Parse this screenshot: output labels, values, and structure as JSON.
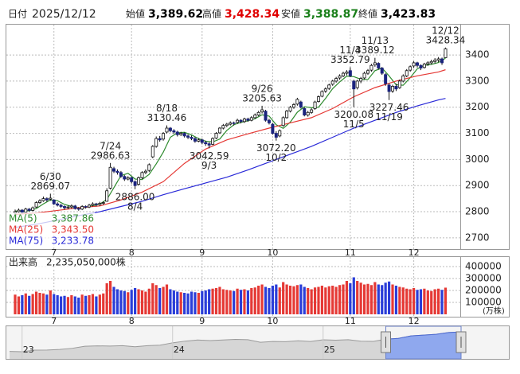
{
  "header": {
    "date_label": "日付",
    "date": "2025/12/12",
    "fields": [
      {
        "label": "始値",
        "value": 3389.62,
        "value_label": "3,389.62",
        "color": "#000000"
      },
      {
        "label": "高値",
        "value": 3428.34,
        "value_label": "3,428.34",
        "color": "#e00000"
      },
      {
        "label": "安値",
        "value": 3388.87,
        "value_label": "3,388.87",
        "color": "#1a7f1a"
      },
      {
        "label": "終値",
        "value": 3423.83,
        "value_label": "3,423.83",
        "color": "#000000"
      }
    ]
  },
  "chart_data": {
    "type": "candlestick",
    "ylim": [
      2657,
      3516
    ],
    "yticks": [
      2700,
      2800,
      2900,
      3000,
      3100,
      3200,
      3300,
      3400
    ],
    "grid": true,
    "xticks": [
      {
        "value": 11,
        "label": "7"
      },
      {
        "value": 33,
        "label": "8"
      },
      {
        "value": 53,
        "label": "9"
      },
      {
        "value": 73,
        "label": "10"
      },
      {
        "value": 95,
        "label": "11"
      },
      {
        "value": 113,
        "label": "12"
      }
    ],
    "up_color": "#ffffff",
    "down_color": "#1a237e",
    "candles": [
      [
        2795,
        2808,
        2790,
        2800
      ],
      [
        2800,
        2812,
        2796,
        2806
      ],
      [
        2806,
        2810,
        2792,
        2798
      ],
      [
        2798,
        2815,
        2795,
        2810
      ],
      [
        2810,
        2814,
        2800,
        2805
      ],
      [
        2805,
        2820,
        2802,
        2815
      ],
      [
        2818,
        2840,
        2815,
        2835
      ],
      [
        2835,
        2848,
        2830,
        2842
      ],
      [
        2842,
        2858,
        2838,
        2850
      ],
      [
        2850,
        2855,
        2838,
        2845
      ],
      [
        2848,
        2869.07,
        2842,
        2852
      ],
      [
        2845,
        2848,
        2826,
        2830
      ],
      [
        2830,
        2836,
        2820,
        2825
      ],
      [
        2825,
        2830,
        2814,
        2820
      ],
      [
        2820,
        2824,
        2808,
        2815
      ],
      [
        2815,
        2824,
        2810,
        2818
      ],
      [
        2818,
        2828,
        2812,
        2822
      ],
      [
        2822,
        2826,
        2808,
        2812
      ],
      [
        2812,
        2818,
        2804,
        2810
      ],
      [
        2810,
        2825,
        2806,
        2820
      ],
      [
        2820,
        2824,
        2812,
        2818
      ],
      [
        2818,
        2830,
        2814,
        2825
      ],
      [
        2825,
        2836,
        2820,
        2830
      ],
      [
        2830,
        2834,
        2820,
        2828
      ],
      [
        2828,
        2838,
        2822,
        2832
      ],
      [
        2832,
        2840,
        2826,
        2835
      ],
      [
        2840,
        2890,
        2838,
        2880
      ],
      [
        2890,
        2986.63,
        2885,
        2970
      ],
      [
        2965,
        2972,
        2948,
        2955
      ],
      [
        2955,
        2962,
        2942,
        2950
      ],
      [
        2950,
        2956,
        2930,
        2935
      ],
      [
        2935,
        2940,
        2918,
        2925
      ],
      [
        2925,
        2936,
        2920,
        2930
      ],
      [
        2930,
        2934,
        2908,
        2915
      ],
      [
        2915,
        2920,
        2886.0,
        2900
      ],
      [
        2905,
        2935,
        2900,
        2930
      ],
      [
        2930,
        2955,
        2925,
        2950
      ],
      [
        2950,
        2962,
        2944,
        2955
      ],
      [
        2958,
        2985,
        2952,
        2980
      ],
      [
        3010,
        3055,
        3005,
        3050
      ],
      [
        3050,
        3088,
        3045,
        3080
      ],
      [
        3080,
        3090,
        3068,
        3075
      ],
      [
        3078,
        3105,
        3072,
        3100
      ],
      [
        3105,
        3130.46,
        3100,
        3120
      ],
      [
        3120,
        3124,
        3104,
        3110
      ],
      [
        3110,
        3116,
        3098,
        3105
      ],
      [
        3105,
        3110,
        3088,
        3095
      ],
      [
        3095,
        3106,
        3090,
        3100
      ],
      [
        3100,
        3104,
        3084,
        3090
      ],
      [
        3090,
        3096,
        3078,
        3085
      ],
      [
        3085,
        3092,
        3074,
        3080
      ],
      [
        3080,
        3086,
        3064,
        3070
      ],
      [
        3070,
        3082,
        3066,
        3075
      ],
      [
        3075,
        3080,
        3058,
        3065
      ],
      [
        3065,
        3072,
        3052,
        3060
      ],
      [
        3060,
        3066,
        3042.59,
        3055
      ],
      [
        3058,
        3085,
        3055,
        3080
      ],
      [
        3082,
        3105,
        3078,
        3100
      ],
      [
        3102,
        3124,
        3098,
        3120
      ],
      [
        3120,
        3136,
        3115,
        3130
      ],
      [
        3130,
        3140,
        3124,
        3135
      ],
      [
        3135,
        3146,
        3130,
        3140
      ],
      [
        3140,
        3145,
        3130,
        3138
      ],
      [
        3142,
        3156,
        3136,
        3150
      ],
      [
        3150,
        3154,
        3138,
        3145
      ],
      [
        3145,
        3160,
        3140,
        3155
      ],
      [
        3155,
        3160,
        3144,
        3150
      ],
      [
        3150,
        3166,
        3146,
        3160
      ],
      [
        3160,
        3176,
        3155,
        3170
      ],
      [
        3170,
        3186,
        3165,
        3180
      ],
      [
        3182,
        3205.63,
        3176,
        3190
      ],
      [
        3185,
        3190,
        3145,
        3150
      ],
      [
        3150,
        3156,
        3134,
        3140
      ],
      [
        3135,
        3140,
        3095,
        3100
      ],
      [
        3100,
        3108,
        3072.2,
        3085
      ],
      [
        3090,
        3115,
        3085,
        3110
      ],
      [
        3130,
        3165,
        3125,
        3160
      ],
      [
        3160,
        3190,
        3156,
        3185
      ],
      [
        3185,
        3205,
        3180,
        3200
      ],
      [
        3200,
        3216,
        3194,
        3210
      ],
      [
        3212,
        3236,
        3206,
        3230
      ],
      [
        3220,
        3225,
        3195,
        3200
      ],
      [
        3195,
        3200,
        3165,
        3170
      ],
      [
        3170,
        3186,
        3164,
        3180
      ],
      [
        3180,
        3196,
        3175,
        3190
      ],
      [
        3195,
        3225,
        3190,
        3220
      ],
      [
        3222,
        3245,
        3218,
        3240
      ],
      [
        3242,
        3265,
        3238,
        3260
      ],
      [
        3262,
        3276,
        3255,
        3270
      ],
      [
        3272,
        3290,
        3266,
        3285
      ],
      [
        3288,
        3305,
        3282,
        3300
      ],
      [
        3300,
        3316,
        3294,
        3310
      ],
      [
        3312,
        3326,
        3305,
        3320
      ],
      [
        3320,
        3336,
        3315,
        3330
      ],
      [
        3330,
        3342,
        3322,
        3335
      ],
      [
        3340,
        3352.79,
        3315,
        3320
      ],
      [
        3300,
        3305,
        3200.08,
        3270
      ],
      [
        3275,
        3305,
        3268,
        3300
      ],
      [
        3300,
        3316,
        3292,
        3310
      ],
      [
        3312,
        3336,
        3306,
        3330
      ],
      [
        3330,
        3346,
        3324,
        3340
      ],
      [
        3342,
        3366,
        3336,
        3360
      ],
      [
        3362,
        3389.12,
        3355,
        3370
      ],
      [
        3368,
        3372,
        3344,
        3350
      ],
      [
        3350,
        3354,
        3324,
        3330
      ],
      [
        3325,
        3330,
        3282,
        3290
      ],
      [
        3285,
        3292,
        3227.46,
        3260
      ],
      [
        3262,
        3286,
        3255,
        3280
      ],
      [
        3280,
        3290,
        3262,
        3270
      ],
      [
        3275,
        3306,
        3270,
        3300
      ],
      [
        3300,
        3326,
        3295,
        3320
      ],
      [
        3320,
        3346,
        3315,
        3340
      ],
      [
        3342,
        3360,
        3336,
        3355
      ],
      [
        3358,
        3376,
        3350,
        3370
      ],
      [
        3370,
        3374,
        3352,
        3360
      ],
      [
        3360,
        3364,
        3342,
        3350
      ],
      [
        3352,
        3370,
        3348,
        3365
      ],
      [
        3365,
        3376,
        3358,
        3370
      ],
      [
        3370,
        3382,
        3364,
        3375
      ],
      [
        3375,
        3388,
        3368,
        3380
      ],
      [
        3380,
        3392,
        3372,
        3385
      ],
      [
        3385,
        3390,
        3362,
        3370
      ],
      [
        3389.62,
        3428.34,
        3388.87,
        3423.83
      ]
    ],
    "annotations": [
      {
        "date": "6/30",
        "x": 10,
        "value": 2869.07,
        "position": "above"
      },
      {
        "date": "7/24",
        "x": 27,
        "value": 2986.63,
        "position": "above"
      },
      {
        "date": "8/4",
        "x": 34,
        "value": 2886.0,
        "value_label": "2886.00",
        "position": "below"
      },
      {
        "date": "8/18",
        "x": 43,
        "value": 3130.46,
        "position": "above"
      },
      {
        "date": "9/3",
        "x": 55,
        "value": 3042.59,
        "position": "below"
      },
      {
        "date": "9/26",
        "x": 70,
        "value": 3205.63,
        "position": "above"
      },
      {
        "date": "10/2",
        "x": 74,
        "value": 3072.2,
        "value_label": "3072.20",
        "position": "below"
      },
      {
        "date": "11/4",
        "x": 95,
        "value": 3352.79,
        "position": "above"
      },
      {
        "date": "11/5",
        "x": 96,
        "value": 3200.08,
        "position": "below"
      },
      {
        "date": "11/13",
        "x": 102,
        "value": 3389.12,
        "position": "above"
      },
      {
        "date": "11/19",
        "x": 106,
        "value": 3227.46,
        "position": "below"
      },
      {
        "date": "12/12",
        "x": 122,
        "value": 3428.34,
        "position": "above"
      }
    ],
    "ma": [
      {
        "name": "MA(5)",
        "color": "#2e8b2e",
        "value_label": "3,387.86",
        "x": [
          0,
          2,
          4,
          6,
          8,
          10,
          12,
          14,
          16,
          18,
          20,
          22,
          24,
          26,
          28,
          30,
          32,
          34,
          36,
          38,
          40,
          42,
          44,
          46,
          48,
          50,
          52,
          54,
          56,
          58,
          60,
          62,
          64,
          66,
          68,
          70,
          72,
          74,
          76,
          78,
          80,
          82,
          84,
          86,
          88,
          90,
          92,
          94,
          96,
          98,
          100,
          102,
          104,
          106,
          108,
          110,
          112,
          114,
          116,
          118,
          120,
          122
        ],
        "values": [
          2802,
          2803,
          2804,
          2812,
          2830,
          2845,
          2842,
          2828,
          2820,
          2815,
          2816,
          2823,
          2829,
          2847,
          2892,
          2938,
          2947,
          2925,
          2923,
          2943,
          2983,
          3028,
          3085,
          3102,
          3104,
          3094,
          3080,
          3070,
          3067,
          3078,
          3111,
          3133,
          3142,
          3148,
          3156,
          3171,
          3166,
          3133,
          3119,
          3143,
          3181,
          3202,
          3198,
          3200,
          3234,
          3271,
          3297,
          3319,
          3317,
          3307,
          3306,
          3340,
          3350,
          3320,
          3286,
          3284,
          3313,
          3347,
          3360,
          3364,
          3371,
          3387.86
        ]
      },
      {
        "name": "MA(25)",
        "color": "#e53935",
        "value_label": "3,343.50",
        "x": [
          0,
          6,
          12,
          18,
          24,
          30,
          36,
          42,
          48,
          54,
          60,
          66,
          72,
          78,
          84,
          90,
          96,
          102,
          108,
          114,
          120,
          122
        ],
        "values": [
          2790,
          2795,
          2805,
          2815,
          2822,
          2845,
          2875,
          2915,
          2985,
          3040,
          3075,
          3098,
          3120,
          3140,
          3160,
          3195,
          3240,
          3275,
          3300,
          3320,
          3335,
          3343.5
        ]
      },
      {
        "name": "MA(75)",
        "color": "#2a2ad8",
        "value_label": "3,233.78",
        "x": [
          0,
          6,
          12,
          18,
          24,
          30,
          36,
          42,
          48,
          54,
          60,
          66,
          72,
          78,
          84,
          90,
          96,
          102,
          108,
          114,
          120,
          122
        ],
        "values": [
          2740,
          2752,
          2768,
          2785,
          2800,
          2820,
          2840,
          2865,
          2888,
          2910,
          2932,
          2960,
          2990,
          3020,
          3050,
          3085,
          3120,
          3150,
          3180,
          3205,
          3228,
          3233.78
        ]
      }
    ],
    "volume_label": "出来高",
    "volume_last": 2235050000,
    "volume_last_label": "2,235,050,000株",
    "volume_unit": "(万株)",
    "volume_ylim": [
      0,
      480000
    ],
    "volume_yticks": [
      100000,
      200000,
      300000,
      400000
    ],
    "volume_up_color": "#e53935",
    "volume_down_color": "#2a3dd8",
    "volume": [
      165000,
      150000,
      160000,
      175000,
      155000,
      170000,
      190000,
      180000,
      175000,
      165000,
      200000,
      170000,
      160000,
      150000,
      155000,
      145000,
      160000,
      150000,
      140000,
      165000,
      155000,
      160000,
      170000,
      150000,
      165000,
      175000,
      260000,
      280000,
      230000,
      210000,
      200000,
      195000,
      185000,
      205000,
      220000,
      210000,
      200000,
      190000,
      215000,
      260000,
      245000,
      220000,
      230000,
      250000,
      210000,
      200000,
      190000,
      185000,
      180000,
      175000,
      190000,
      185000,
      180000,
      195000,
      200000,
      210000,
      215000,
      220000,
      230000,
      210000,
      205000,
      200000,
      195000,
      215000,
      205000,
      210000,
      200000,
      220000,
      225000,
      240000,
      250000,
      230000,
      220000,
      240000,
      250000,
      225000,
      270000,
      250000,
      240000,
      235000,
      245000,
      250000,
      230000,
      220000,
      210000,
      225000,
      230000,
      240000,
      225000,
      235000,
      240000,
      230000,
      245000,
      250000,
      280000,
      260000,
      310000,
      280000,
      265000,
      250000,
      255000,
      245000,
      270000,
      250000,
      245000,
      265000,
      275000,
      250000,
      240000,
      230000,
      225000,
      215000,
      210000,
      220000,
      205000,
      210000,
      215000,
      200000,
      195000,
      210000,
      215000,
      205000,
      223505
    ],
    "navigator": {
      "ylim": [
        1500,
        3700
      ],
      "range": [
        30,
        36
      ],
      "color": "#9a9a9a",
      "range_color": "#8fa8ee",
      "xticks": [
        {
          "value": 1,
          "label": "23"
        },
        {
          "value": 13,
          "label": "24"
        },
        {
          "value": 25,
          "label": "25"
        }
      ],
      "values": [
        1890,
        1870,
        1990,
        2000,
        2040,
        2130,
        2290,
        2320,
        2300,
        2330,
        2250,
        2330,
        2370,
        2550,
        2680,
        2770,
        2720,
        2770,
        2810,
        2790,
        2590,
        2650,
        2640,
        2710,
        2650,
        2780,
        2750,
        2790,
        2680,
        2660,
        2830,
        2890,
        3080,
        3140,
        3200,
        3340,
        3390
      ]
    }
  }
}
